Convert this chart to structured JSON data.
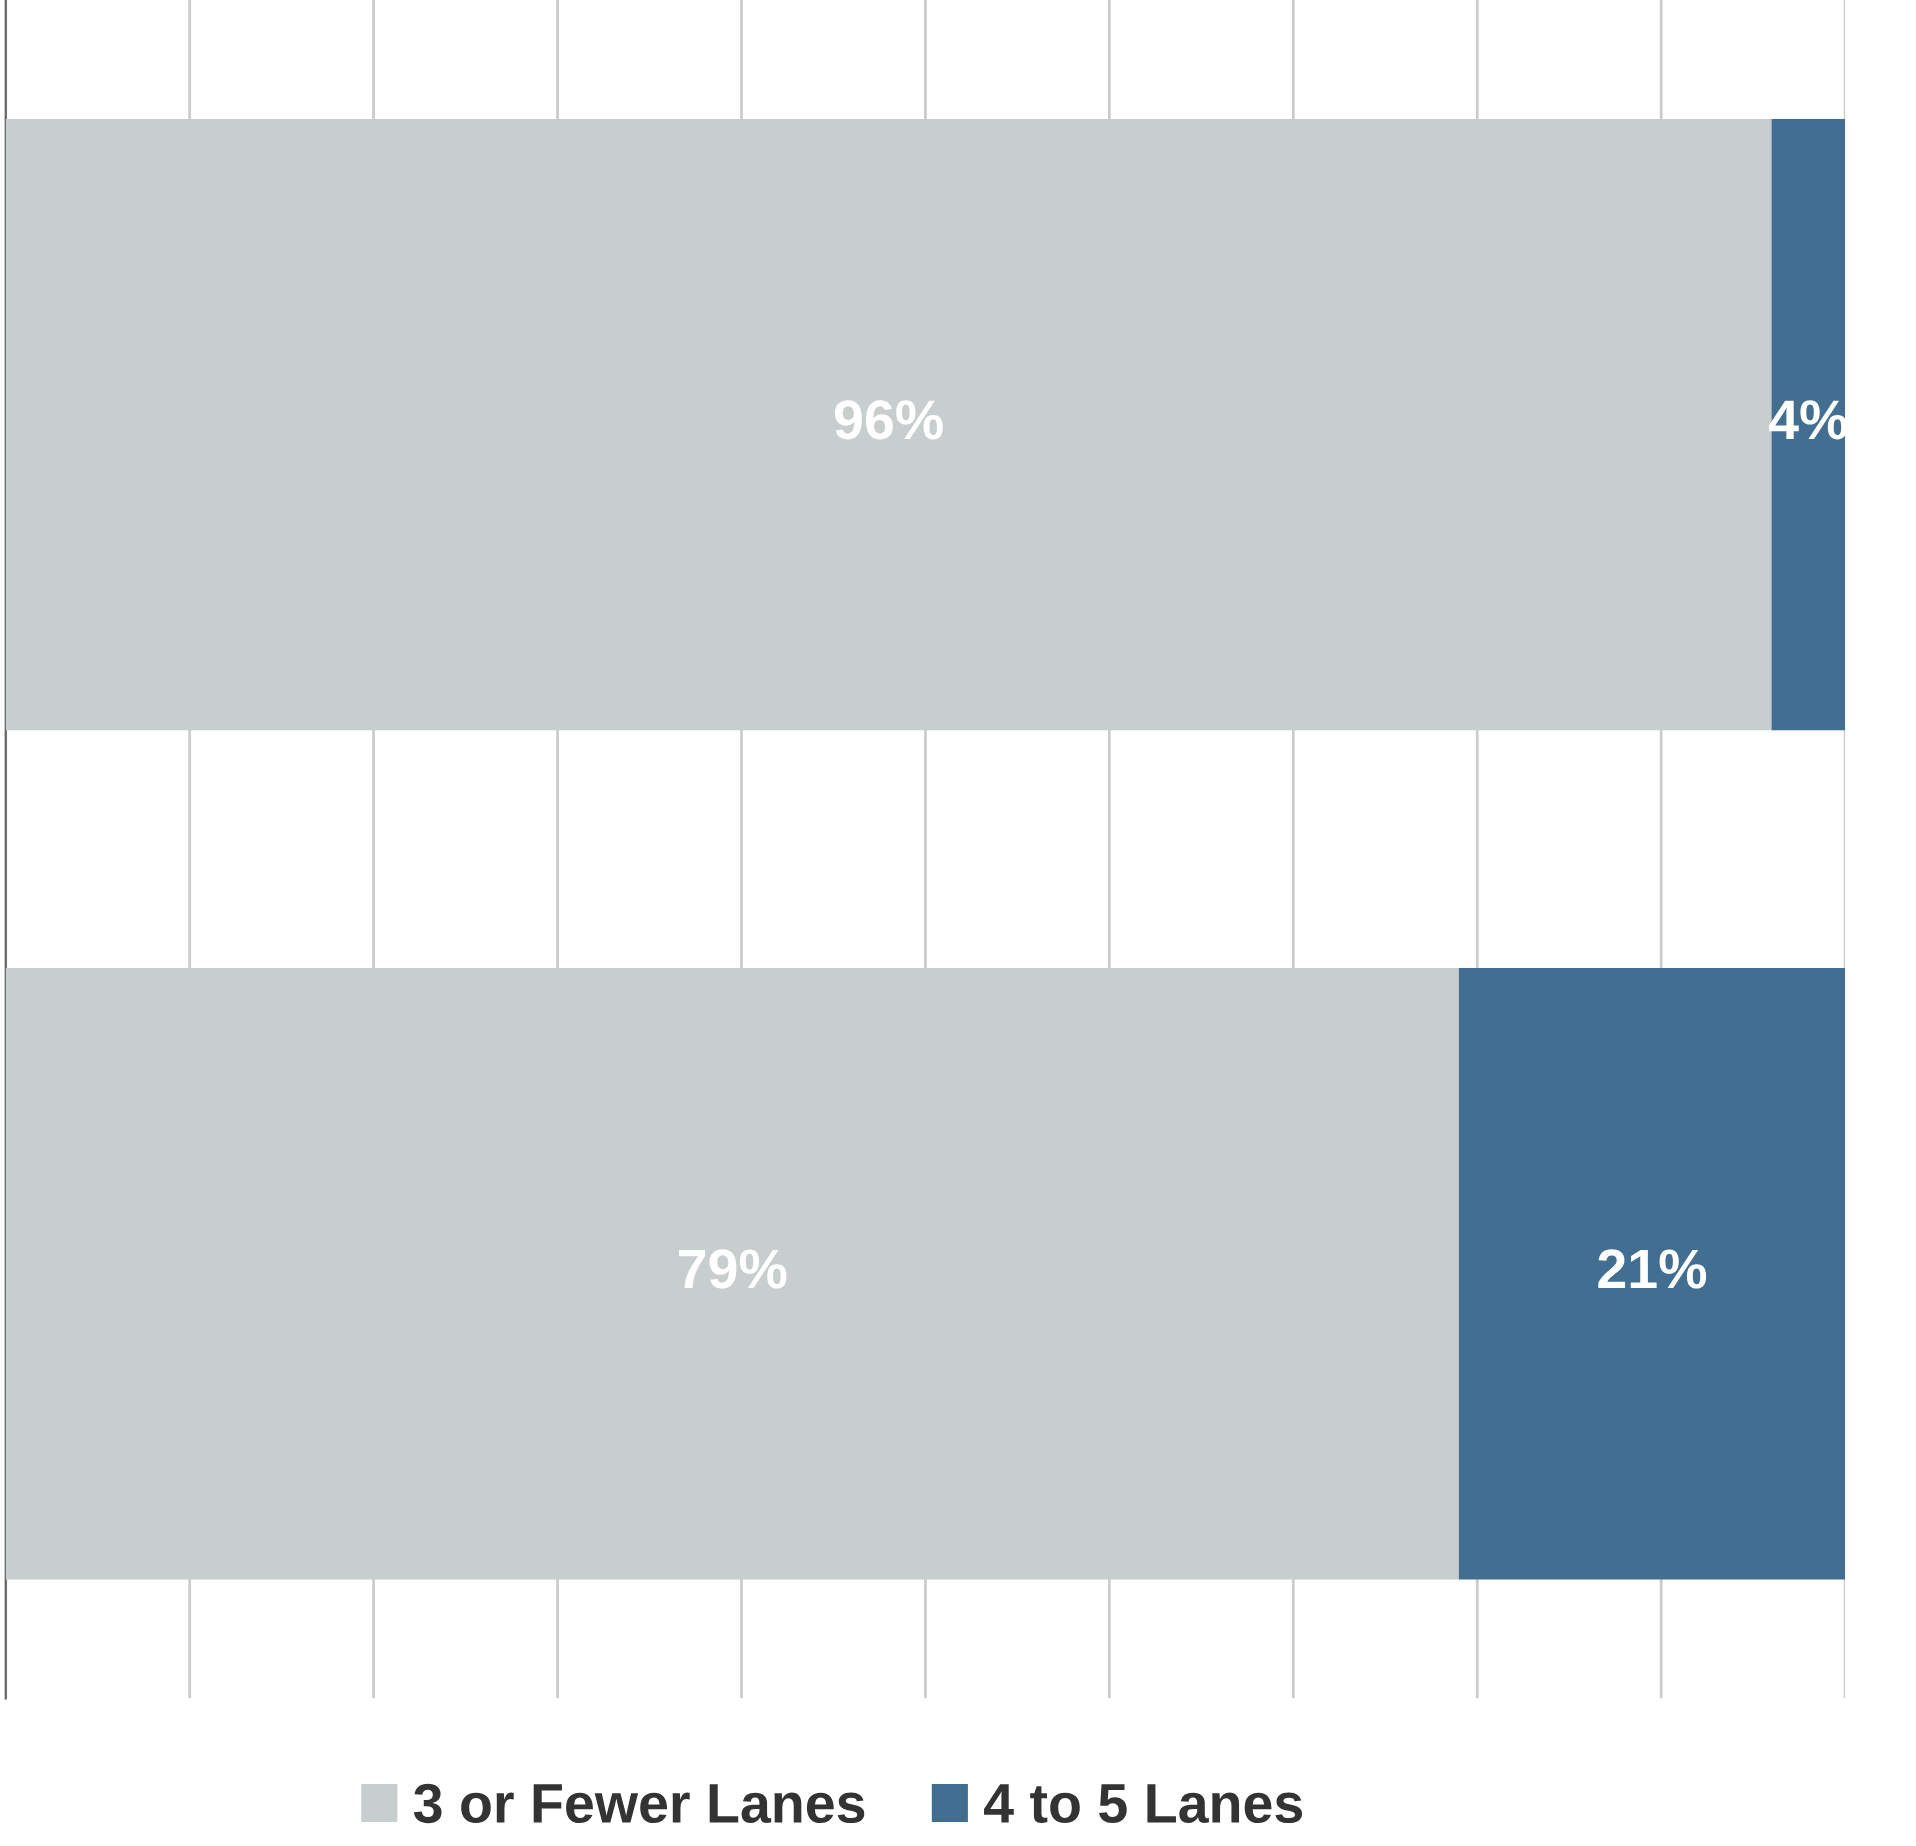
{
  "chart_data": {
    "type": "bar",
    "orientation": "horizontal",
    "stacked": true,
    "categories": [
      null,
      null
    ],
    "series": [
      {
        "name": "3 or Fewer Lanes",
        "color": "#c8cdcd",
        "values": [
          96,
          79
        ],
        "value_labels": [
          "96%",
          "79%"
        ]
      },
      {
        "name": "4 to 5 Lanes",
        "color": "#416e91",
        "values": [
          4,
          21
        ],
        "value_labels": [
          "4%",
          "21%"
        ]
      }
    ],
    "grid": "x",
    "legend": "bottom"
  }
}
